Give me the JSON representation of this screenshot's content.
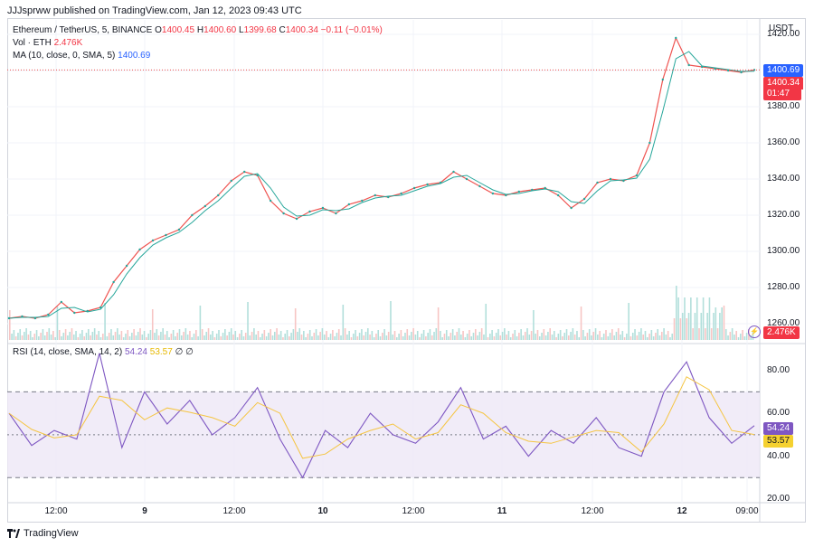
{
  "header": {
    "publish_text": "JJJsprww published on TradingView.com, Jan 12, 2023 09:43 UTC"
  },
  "legend": {
    "symbol": "Ethereum / TetherUS, 5, BINANCE",
    "o_label": "O",
    "o_value": "1400.45",
    "h_label": "H",
    "h_value": "1400.60",
    "l_label": "L",
    "l_value": "1399.68",
    "c_label": "C",
    "c_value": "1400.34",
    "change": "−0.11 (−0.01%)",
    "vol_label": "Vol · ETH",
    "vol_value": "2.476K",
    "ma_label": "MA (10, close, 0, SMA, 5)",
    "ma_value": "1400.69",
    "rsi_label": "RSI (14, close, SMA, 14, 2)",
    "rsi_value": "54.24",
    "rsi_sma_value": "53.57",
    "rsi_extra": "∅ ∅"
  },
  "price_axis": {
    "currency": "USDT",
    "ticks": [
      "1420.00",
      "1400.00",
      "1380.00",
      "1360.00",
      "1340.00",
      "1320.00",
      "1300.00",
      "1280.00",
      "1260.00"
    ],
    "ma_tag": "1400.69",
    "price_tag": "1400.34",
    "countdown_tag": "01:47",
    "vol_tag": "2.476K"
  },
  "rsi_axis": {
    "ticks": [
      "80.00",
      "60.00",
      "40.00",
      "20.00"
    ],
    "rsi_tag": "54.24",
    "sma_tag": "53.57"
  },
  "time_axis": [
    "12:00",
    "9",
    "12:00",
    "10",
    "12:00",
    "11",
    "12:00",
    "12",
    "09:00"
  ],
  "branding": {
    "logo_text": "TradingView"
  },
  "colors": {
    "up": "#26a69a",
    "down": "#ef5350",
    "ma": "#2962ff",
    "rsi": "#7e57c2",
    "rsi_sma": "#f5c542",
    "rsi_band": "#ede7f6"
  },
  "chart_data": {
    "type": "line",
    "title": "Ethereum / TetherUS, 5, BINANCE",
    "ylim": [
      1250,
      1425
    ],
    "rsi_ylim": [
      20,
      90
    ],
    "rsi_levels": [
      70,
      50,
      30
    ],
    "grid": true,
    "series": [
      {
        "name": "Ethereum / TetherUS",
        "x": [
          "Jan 8 06:00",
          "Jan 8 08:00",
          "Jan 8 10:00",
          "Jan 8 12:00",
          "Jan 8 13:00",
          "Jan 8 14:00",
          "Jan 8 16:00",
          "Jan 8 18:00",
          "Jan 8 19:00",
          "Jan 8 20:00",
          "Jan 8 22:00",
          "Jan 9 00:00",
          "Jan 9 02:00",
          "Jan 9 04:00",
          "Jan 9 06:00",
          "Jan 9 08:00",
          "Jan 9 10:00",
          "Jan 9 12:00",
          "Jan 9 14:00",
          "Jan 9 15:00",
          "Jan 9 16:00",
          "Jan 9 18:00",
          "Jan 9 20:00",
          "Jan 9 22:00",
          "Jan 10 00:00",
          "Jan 10 02:00",
          "Jan 10 04:00",
          "Jan 10 06:00",
          "Jan 10 08:00",
          "Jan 10 10:00",
          "Jan 10 12:00",
          "Jan 10 14:00",
          "Jan 10 16:00",
          "Jan 10 18:00",
          "Jan 10 20:00",
          "Jan 10 22:00",
          "Jan 11 00:00",
          "Jan 11 02:00",
          "Jan 11 04:00",
          "Jan 11 06:00",
          "Jan 11 08:00",
          "Jan 11 10:00",
          "Jan 11 12:00",
          "Jan 11 14:00",
          "Jan 11 16:00",
          "Jan 11 18:00",
          "Jan 11 19:00",
          "Jan 11 20:00",
          "Jan 11 21:00",
          "Jan 11 22:00",
          "Jan 11 23:00",
          "Jan 12 00:00",
          "Jan 12 01:00",
          "Jan 12 02:00",
          "Jan 12 04:00",
          "Jan 12 06:00",
          "Jan 12 08:00",
          "Jan 12 09:40"
        ],
        "values": [
          1263,
          1264,
          1263,
          1265,
          1272,
          1266,
          1267,
          1269,
          1283,
          1292,
          1301,
          1306,
          1309,
          1312,
          1320,
          1325,
          1331,
          1339,
          1344,
          1342,
          1328,
          1321,
          1318,
          1322,
          1324,
          1321,
          1326,
          1328,
          1331,
          1330,
          1332,
          1335,
          1337,
          1338,
          1344,
          1340,
          1336,
          1332,
          1331,
          1333,
          1334,
          1335,
          1331,
          1324,
          1329,
          1338,
          1340,
          1339,
          1342,
          1360,
          1395,
          1418,
          1403,
          1402,
          1401,
          1400,
          1399,
          1400.34
        ]
      },
      {
        "name": "RSI",
        "x": [
          "Jan 8 06:00",
          "Jan 8 09:00",
          "Jan 8 12:00",
          "Jan 8 15:00",
          "Jan 8 18:00",
          "Jan 8 21:00",
          "Jan 9 00:00",
          "Jan 9 03:00",
          "Jan 9 06:00",
          "Jan 9 09:00",
          "Jan 9 12:00",
          "Jan 9 15:00",
          "Jan 9 18:00",
          "Jan 9 21:00",
          "Jan 10 00:00",
          "Jan 10 03:00",
          "Jan 10 06:00",
          "Jan 10 09:00",
          "Jan 10 12:00",
          "Jan 10 15:00",
          "Jan 10 18:00",
          "Jan 10 21:00",
          "Jan 11 00:00",
          "Jan 11 03:00",
          "Jan 11 06:00",
          "Jan 11 09:00",
          "Jan 11 12:00",
          "Jan 11 15:00",
          "Jan 11 18:00",
          "Jan 11 21:00",
          "Jan 12 00:00",
          "Jan 12 03:00",
          "Jan 12 06:00",
          "Jan 12 09:40"
        ],
        "values": [
          60,
          45,
          52,
          48,
          88,
          44,
          70,
          55,
          66,
          50,
          58,
          72,
          48,
          30,
          52,
          44,
          60,
          50,
          46,
          56,
          72,
          48,
          54,
          40,
          52,
          46,
          58,
          44,
          40,
          70,
          84,
          58,
          46,
          54.24
        ]
      }
    ]
  }
}
